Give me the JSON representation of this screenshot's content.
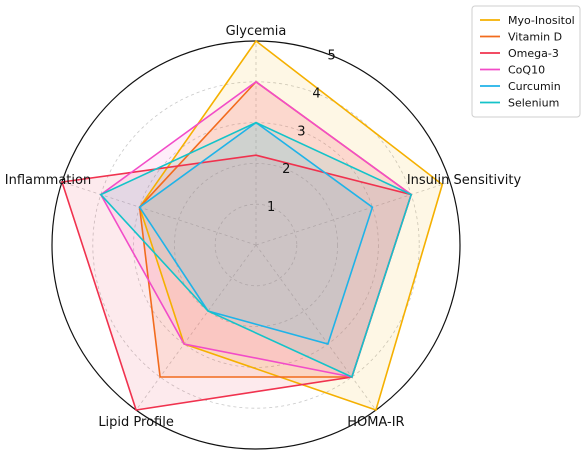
{
  "chart_data": {
    "type": "radar",
    "axes": [
      "Glycemia",
      "Insulin Sensitivity",
      "HOMA-IR",
      "Lipid Profile",
      "Inflammation"
    ],
    "rlim": [
      0,
      5
    ],
    "radial_ticks": [
      "1",
      "2",
      "3",
      "4",
      "5"
    ],
    "grid": true,
    "legend_position": "top-right",
    "series": [
      {
        "name": "Myo-Inositol",
        "color": "#F5B000",
        "values": [
          5.0,
          4.8,
          5.0,
          3.0,
          3.0
        ]
      },
      {
        "name": "Vitamin D",
        "color": "#F26B1D",
        "values": [
          4.0,
          4.0,
          4.0,
          4.0,
          3.0
        ]
      },
      {
        "name": "Omega-3",
        "color": "#F0324E",
        "values": [
          2.2,
          4.0,
          4.0,
          5.0,
          5.0
        ]
      },
      {
        "name": "CoQ10",
        "color": "#F24CC8",
        "values": [
          4.0,
          4.0,
          4.0,
          3.0,
          4.0
        ]
      },
      {
        "name": "Curcumin",
        "color": "#1FB3E8",
        "values": [
          3.0,
          3.0,
          3.0,
          2.0,
          3.0
        ]
      },
      {
        "name": "Selenium",
        "color": "#14C3C9",
        "values": [
          3.0,
          4.0,
          4.0,
          2.0,
          4.0
        ]
      }
    ]
  }
}
